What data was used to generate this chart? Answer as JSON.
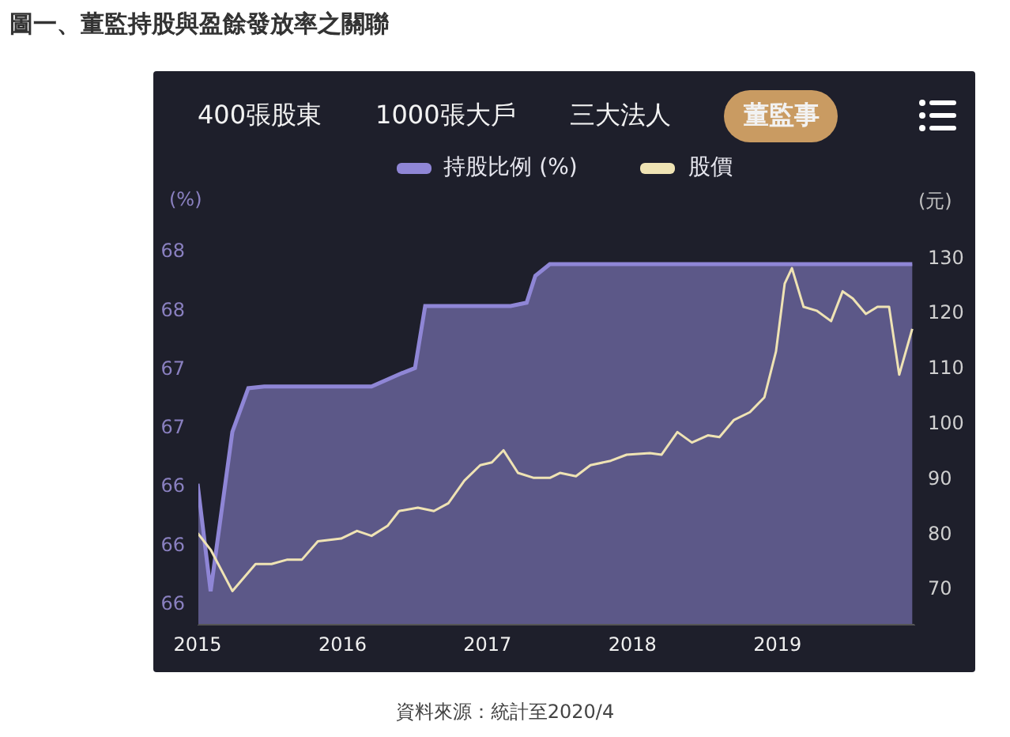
{
  "chart_data": {
    "type": "line",
    "title": "圖一、董監持股與盈餘發放率之關聯",
    "ylabel": "(%)",
    "y2label": "(元)",
    "annotations": [
      "400張股東",
      "1000張大戶",
      "三大法人",
      "董監事",
      "資料來源：統計至2020/4"
    ],
    "legend": "top",
    "xlim": [
      2015,
      2019.95
    ],
    "xticks": [
      2015,
      2016,
      2017,
      2018,
      2019
    ],
    "ylim": [
      65.62,
      67.93
    ],
    "yticks": [
      {
        "value": 65.75,
        "label": "66"
      },
      {
        "value": 66.1,
        "label": "66"
      },
      {
        "value": 66.45,
        "label": "66"
      },
      {
        "value": 66.8,
        "label": "67"
      },
      {
        "value": 67.15,
        "label": "67"
      },
      {
        "value": 67.5,
        "label": "68"
      },
      {
        "value": 67.85,
        "label": "68"
      }
    ],
    "y2lim": [
      63.4,
      133.6
    ],
    "y2ticks": [
      70,
      80,
      90,
      100,
      110,
      120,
      130
    ],
    "series": [
      {
        "name": "持股比例 (%)",
        "type": "area",
        "color": "#8f86d6",
        "axis": "y",
        "x": [
          2015,
          2015.09,
          2015.24,
          2015.35,
          2015.46,
          2016.2,
          2016.41,
          2016.5,
          2016.57,
          2017.16,
          2017.27,
          2017.33,
          2017.43,
          2019.93
        ],
        "values": [
          66.46,
          65.82,
          66.77,
          67.03,
          67.04,
          67.04,
          67.12,
          67.15,
          67.52,
          67.52,
          67.54,
          67.7,
          67.77,
          67.77
        ]
      },
      {
        "name": "股價",
        "color": "#efe3b4",
        "axis": "y2",
        "x": [
          2015,
          2015.09,
          2015.24,
          2015.4,
          2015.51,
          2015.62,
          2015.72,
          2015.83,
          2015.99,
          2016.1,
          2016.2,
          2016.31,
          2016.39,
          2016.52,
          2016.63,
          2016.73,
          2016.84,
          2016.95,
          2017.03,
          2017.11,
          2017.21,
          2017.32,
          2017.43,
          2017.5,
          2017.61,
          2017.71,
          2017.85,
          2017.96,
          2018.12,
          2018.2,
          2018.31,
          2018.41,
          2018.52,
          2018.6,
          2018.7,
          2018.81,
          2018.91,
          2018.99,
          2019.05,
          2019.1,
          2019.18,
          2019.27,
          2019.37,
          2019.45,
          2019.52,
          2019.61,
          2019.69,
          2019.77,
          2019.84,
          2019.93
        ],
        "values": [
          80,
          77,
          69.5,
          74.4,
          74.4,
          75.2,
          75.2,
          78.5,
          79,
          80.4,
          79.5,
          81.3,
          84,
          84.6,
          84,
          85.4,
          89.5,
          92.3,
          92.8,
          95,
          90.9,
          90,
          90,
          90.9,
          90.3,
          92.3,
          93.1,
          94.2,
          94.5,
          94.2,
          98.3,
          96.4,
          97.7,
          97.4,
          100.5,
          101.9,
          104.6,
          112.9,
          125.2,
          128,
          121,
          120.3,
          118.4,
          123.8,
          122.5,
          119.7,
          121,
          121,
          108.7,
          117
        ]
      }
    ]
  }
}
